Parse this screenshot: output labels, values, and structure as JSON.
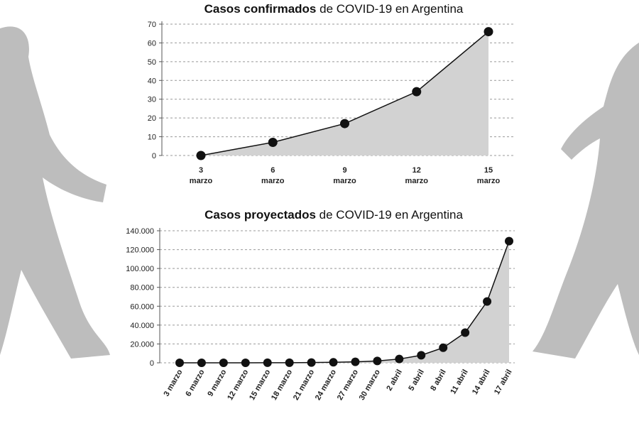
{
  "chart_data": [
    {
      "type": "area-line",
      "title": [
        "Casos confirmados",
        "de COVID-19 en Argentina"
      ],
      "categories": [
        "3",
        "6",
        "9",
        "12",
        "15"
      ],
      "category_unit": "marzo",
      "values": [
        0,
        7,
        17,
        34,
        66
      ],
      "color": "#111111",
      "fill": "#d2d2d2",
      "ylim": [
        0,
        70
      ],
      "yticks": [
        0,
        10,
        20,
        30,
        40,
        50,
        60,
        70
      ],
      "grid": true
    },
    {
      "type": "area-line",
      "title": [
        "Casos proyectados",
        "de COVID-19 en Argentina"
      ],
      "categories": [
        "3 marzo",
        "6 marzo",
        "9 marzo",
        "12 marzo",
        "15 marzo",
        "18 marzo",
        "21 marzo",
        "24 marzo",
        "27 marzo",
        "30 marzo",
        "2 abril",
        "5 abril",
        "8 abril",
        "11 abril",
        "14 abril",
        "17 abril"
      ],
      "values": [
        0,
        7,
        17,
        34,
        66,
        130,
        260,
        520,
        1000,
        2000,
        4000,
        8000,
        16000,
        32000,
        65000,
        129000
      ],
      "color": "#111111",
      "fill": "#d2d2d2",
      "ylim": [
        0,
        140000
      ],
      "yticks": [
        0,
        {
          "value": 20000,
          "label": "20.000"
        },
        {
          "value": 40000,
          "label": "40.000"
        },
        {
          "value": 60000,
          "label": "60.000"
        },
        {
          "value": 80000,
          "label": "80.000"
        },
        {
          "value": 100000,
          "label": "100.000"
        },
        {
          "value": 120000,
          "label": "120.000"
        },
        {
          "value": 140000,
          "label": "140.000"
        }
      ],
      "grid": true,
      "rotate_labels": true
    }
  ]
}
